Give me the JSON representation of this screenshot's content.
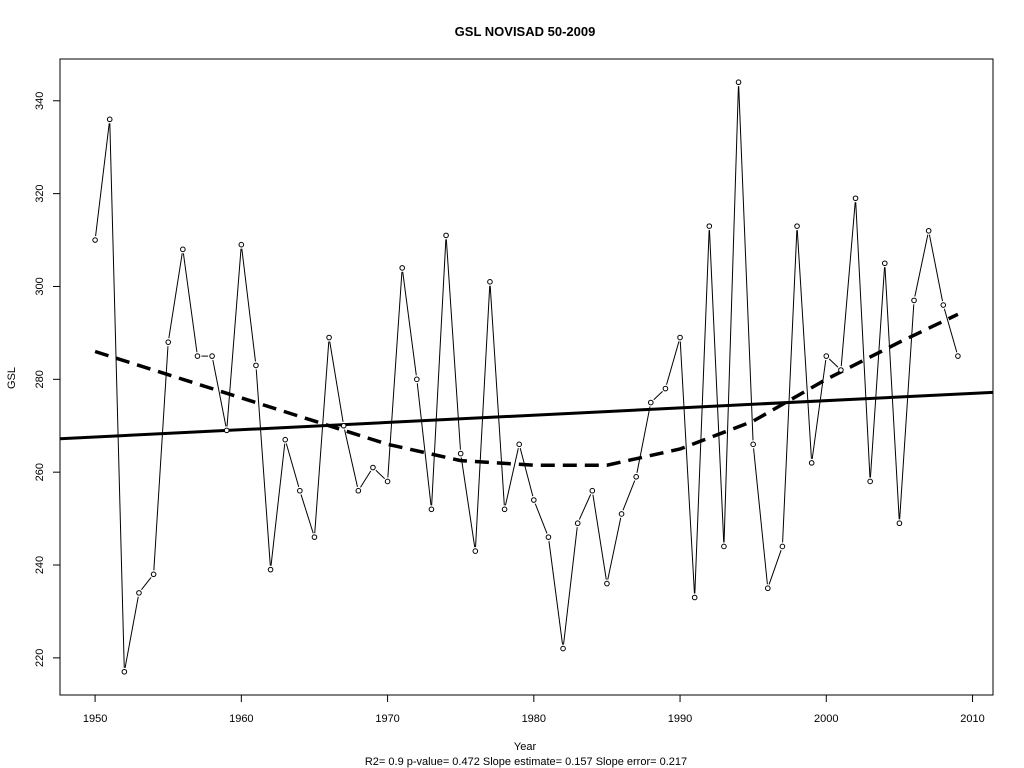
{
  "chart_data": {
    "type": "line",
    "title": "GSL   NOVISAD 50-2009",
    "xlabel": "Year",
    "ylabel": "GSL",
    "subtitle": "R2= 0.9  p-value= 0.472  Slope estimate= 0.157  Slope error= 0.217",
    "xlim": [
      1947.6,
      2011.4
    ],
    "ylim": [
      212,
      349
    ],
    "x_ticks": [
      1950,
      1960,
      1970,
      1980,
      1990,
      2000,
      2010
    ],
    "y_ticks": [
      220,
      240,
      260,
      280,
      300,
      320,
      340
    ],
    "grid": false,
    "series": [
      {
        "style": "line-with-open-points",
        "x": [
          1950,
          1951,
          1952,
          1953,
          1954,
          1955,
          1956,
          1957,
          1958,
          1959,
          1960,
          1961,
          1962,
          1963,
          1964,
          1965,
          1966,
          1967,
          1968,
          1969,
          1970,
          1971,
          1972,
          1973,
          1974,
          1975,
          1976,
          1977,
          1978,
          1979,
          1980,
          1981,
          1982,
          1983,
          1984,
          1985,
          1986,
          1987,
          1988,
          1989,
          1990,
          1991,
          1992,
          1993,
          1994,
          1995,
          1996,
          1997,
          1998,
          1999,
          2000,
          2001,
          2002,
          2003,
          2004,
          2005,
          2006,
          2007,
          2008,
          2009
        ],
        "values": [
          310,
          336,
          217,
          234,
          238,
          288,
          308,
          285,
          285,
          269,
          309,
          283,
          239,
          267,
          256,
          246,
          289,
          270,
          256,
          261,
          258,
          304,
          280,
          252,
          311,
          264,
          243,
          301,
          252,
          266,
          254,
          246,
          222,
          249,
          256,
          236,
          251,
          259,
          275,
          278,
          289,
          233,
          313,
          244,
          344,
          266,
          235,
          244,
          313,
          262,
          285,
          282,
          319,
          258,
          305,
          249,
          297,
          312,
          296,
          285
        ]
      },
      {
        "style": "solid-thick-trend",
        "x": [
          1947.6,
          2011.4
        ],
        "values": [
          267.2,
          277.2
        ]
      },
      {
        "style": "dashed-thick-smooth",
        "x": [
          1950,
          1955,
          1960,
          1965,
          1970,
          1975,
          1980,
          1985,
          1990,
          1995,
          2000,
          2005,
          2009
        ],
        "values": [
          286,
          281,
          276,
          271,
          266,
          262.5,
          261.5,
          261.5,
          265,
          271,
          280,
          288,
          294
        ]
      }
    ]
  }
}
